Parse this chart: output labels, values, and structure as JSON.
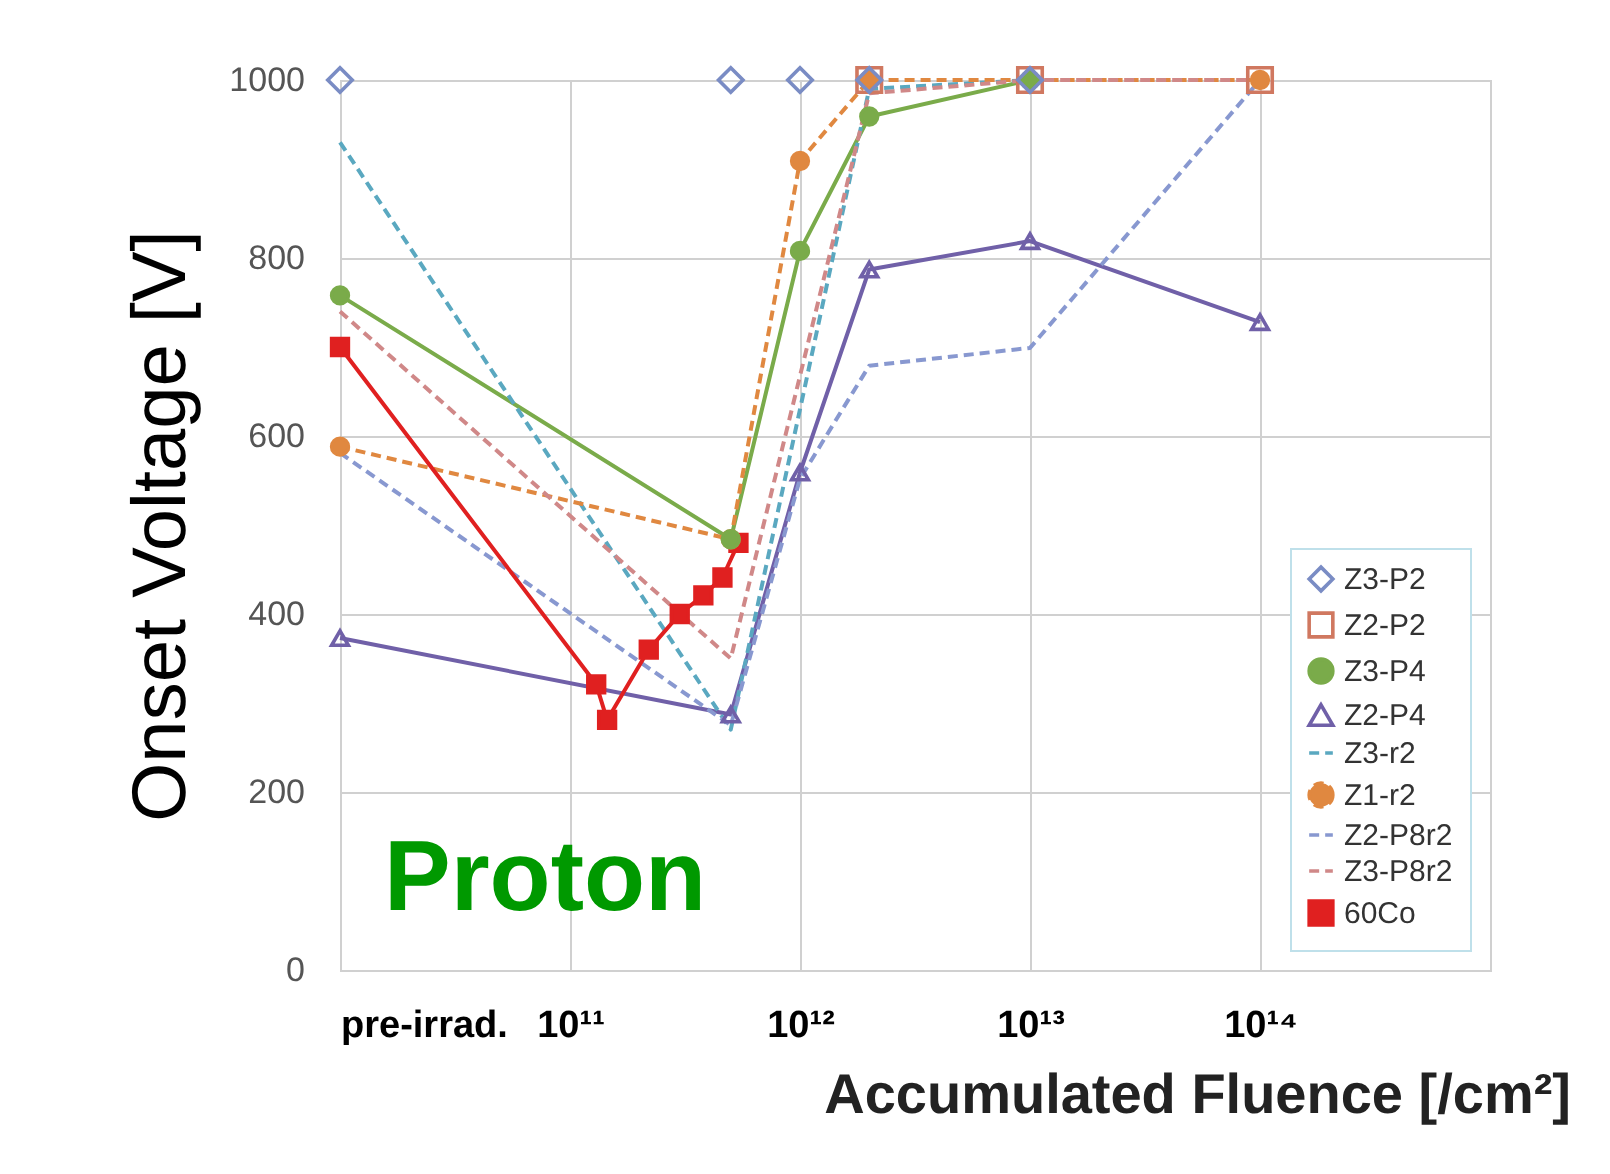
{
  "chart_data": {
    "type": "line",
    "xlabel": "Accumulated Fluence [/cm²]",
    "ylabel": "Onset Voltage [V]",
    "annotations": [
      "Proton"
    ],
    "log": "x",
    "xlim": [
      10000000000.0,
      1000000000000000.0
    ],
    "xticks": [
      {
        "value": 10000000000.0,
        "label": "pre-irrad."
      },
      {
        "value": 100000000000.0,
        "label": "10¹¹"
      },
      {
        "value": 1000000000000.0,
        "label": "10¹²"
      },
      {
        "value": 10000000000000.0,
        "label": "10¹³"
      },
      {
        "value": 100000000000000.0,
        "label": "10¹⁴"
      },
      {
        "value": 1000000000000000.0,
        "label": null
      }
    ],
    "ylim": [
      0,
      1000
    ],
    "yticks": [
      0,
      200,
      400,
      600,
      800,
      1000
    ],
    "grid": true,
    "legend": "bottom right",
    "series": [
      {
        "name": "Z3-P2",
        "type": "scatter",
        "marker": "diamond",
        "color": "#7a8cc4",
        "x": [
          10000000000.0,
          500000000000.0,
          1000000000000.0,
          2000000000000.0,
          10000000000000.0
        ],
        "values": [
          1000,
          1000,
          1000,
          1000,
          1000
        ]
      },
      {
        "name": "Z2-P2",
        "type": "scatter",
        "marker": "square",
        "color": "#d07860",
        "x": [
          2000000000000.0,
          10000000000000.0,
          100000000000000.0
        ],
        "values": [
          1000,
          1000,
          1000
        ]
      },
      {
        "name": "Z3-P4",
        "type": "line",
        "marker": "circle",
        "line_style": "solid",
        "color": "#7aab4a",
        "x": [
          10000000000.0,
          500000000000.0,
          1000000000000.0,
          2000000000000.0,
          10000000000000.0
        ],
        "values": [
          758,
          484,
          808,
          959,
          1000
        ]
      },
      {
        "name": "Z2-P4",
        "type": "line",
        "marker": "triangle",
        "line_style": "solid",
        "color": "#7060a8",
        "x": [
          10000000000.0,
          500000000000.0,
          1000000000000.0,
          2000000000000.0,
          10000000000000.0,
          100000000000000.0
        ],
        "values": [
          373,
          287,
          559,
          787,
          819,
          728
        ]
      },
      {
        "name": "Z3-r2",
        "type": "line",
        "marker": "none",
        "line_style": "dashed",
        "color": "#5aa8c0",
        "x": [
          10000000000.0,
          500000000000.0,
          2000000000000.0,
          10000000000000.0
        ],
        "values": [
          930,
          270,
          990,
          1000
        ]
      },
      {
        "name": "Z1-r2",
        "type": "line",
        "marker": "circle",
        "line_style": "dashed",
        "color": "#e08840",
        "x": [
          10000000000.0,
          500000000000.0,
          1000000000000.0,
          2000000000000.0,
          10000000000000.0,
          100000000000000.0
        ],
        "values": [
          588,
          484,
          909,
          1000,
          1000,
          1000
        ]
      },
      {
        "name": "Z2-P8r2",
        "type": "line",
        "marker": "none",
        "line_style": "dashed",
        "color": "#8898d0",
        "x": [
          10000000000.0,
          500000000000.0,
          1000000000000.0,
          2000000000000.0,
          10000000000000.0,
          100000000000000.0
        ],
        "values": [
          581,
          275,
          552,
          679,
          699,
          1000
        ]
      },
      {
        "name": "Z3-P8r2",
        "type": "line",
        "marker": "none",
        "line_style": "dashed",
        "color": "#d08888",
        "x": [
          10000000000.0,
          500000000000.0,
          2000000000000.0,
          10000000000000.0,
          100000000000000.0
        ],
        "values": [
          740,
          350,
          985,
          1000,
          1000
        ]
      },
      {
        "name": "60Co",
        "type": "line",
        "marker": "square",
        "line_style": "solid",
        "color": "#e02020",
        "x": [
          10000000000.0,
          130000000000.0,
          145000000000.0,
          220000000000.0,
          300000000000.0,
          380000000000.0,
          460000000000.0,
          540000000000.0
        ],
        "values": [
          700,
          321,
          281,
          360,
          400,
          421,
          441,
          480
        ]
      }
    ]
  }
}
